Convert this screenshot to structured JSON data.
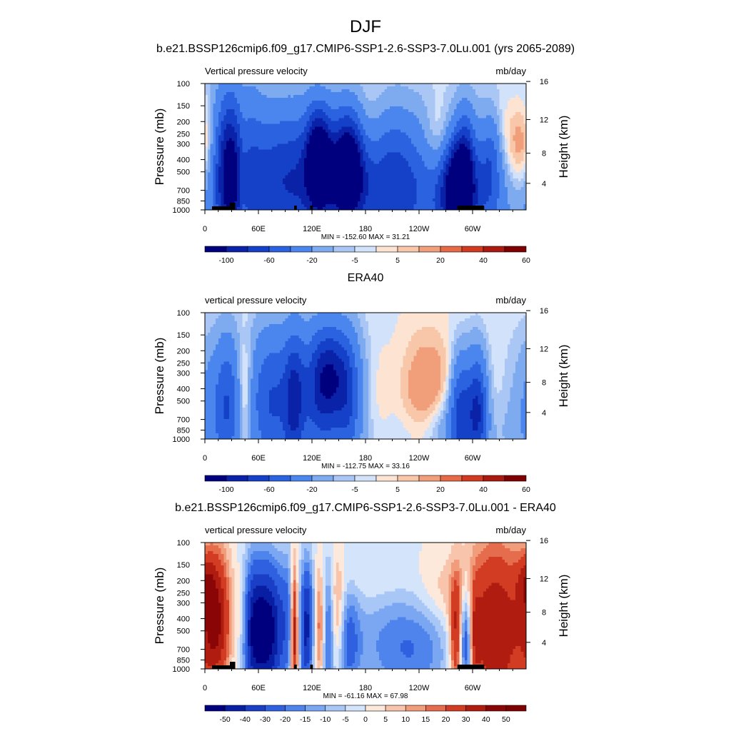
{
  "page_title": "DJF",
  "palette_bluered": [
    "#00007f",
    "#0a22a8",
    "#1540c8",
    "#2a62e0",
    "#4a86ee",
    "#7eaaf0",
    "#a9c6f4",
    "#d2e2fa",
    "#fde4d2",
    "#f8c6a8",
    "#f19e7a",
    "#e66a45",
    "#d23a20",
    "#ab1a10",
    "#7f0000"
  ],
  "palette_diff": [
    "#00007f",
    "#081fa3",
    "#1a3fc6",
    "#2f60df",
    "#4f84ec",
    "#7aa6f2",
    "#a8c6f6",
    "#d4e4fb",
    "#fde8dc",
    "#f8c4ab",
    "#f19c7b",
    "#e56c4c",
    "#d23c22",
    "#b01c10",
    "#8a0606",
    "#7f0000"
  ],
  "panels": [
    {
      "title": "b.e21.BSSP126cmip6.f09_g17.CMIP6-SSP1-2.6-SSP3-7.0Lu.001 (yrs 2065-2089)",
      "left_label": "Vertical pressure velocity",
      "right_label": "mb/day",
      "ylabel": "Pressure (mb)",
      "y2label": "Height (km)",
      "stats": "MIN = -152.60  MAX =  31.21",
      "colorbar_labels": [
        "-100",
        "-60",
        "-20",
        "-5",
        "5",
        "20",
        "40",
        "60"
      ],
      "colorbar_label_slots": [
        1,
        3,
        5,
        7,
        9,
        11,
        13,
        15
      ],
      "palette": "bluered",
      "show_topography": true
    },
    {
      "title": "ERA40",
      "left_label": "vertical pressure velocity",
      "right_label": "mb/day",
      "ylabel": "Pressure (mb)",
      "y2label": "Height (km)",
      "stats": "MIN = -112.75  MAX =  33.16",
      "colorbar_labels": [
        "-100",
        "-60",
        "-20",
        "-5",
        "5",
        "20",
        "40",
        "60"
      ],
      "colorbar_label_slots": [
        1,
        3,
        5,
        7,
        9,
        11,
        13,
        15
      ],
      "palette": "bluered",
      "show_topography": false
    },
    {
      "title": "b.e21.BSSP126cmip6.f09_g17.CMIP6-SSP1-2.6-SSP3-7.0Lu.001 - ERA40",
      "left_label": "vertical pressure velocity",
      "right_label": "mb/day",
      "ylabel": "Pressure (mb)",
      "y2label": "Height (km)",
      "stats": "MIN = -61.16  MAX =  67.98",
      "colorbar_labels": [
        "-50",
        "-40",
        "-30",
        "-20",
        "-15",
        "-10",
        "-5",
        "0",
        "5",
        "10",
        "15",
        "20",
        "30",
        "40",
        "50"
      ],
      "colorbar_label_slots": [
        1,
        2,
        3,
        4,
        5,
        6,
        7,
        8,
        9,
        10,
        11,
        12,
        13,
        14,
        15
      ],
      "palette": "diff",
      "show_topography": true
    }
  ],
  "chart_data": [
    {
      "type": "heatmap",
      "title": "b.e21.BSSP126cmip6.f09_g17.CMIP6-SSP1-2.6-SSP3-7.0Lu.001 (yrs 2065-2089)",
      "ylabel": "Pressure (mb)",
      "y2label": "Height (km)",
      "x_ticks": [
        "0",
        "60E",
        "120E",
        "180",
        "120W",
        "60W"
      ],
      "x_tick_lon": [
        0,
        60,
        120,
        180,
        240,
        300
      ],
      "xlim": [
        0,
        360
      ],
      "y_ticks": [
        100,
        150,
        200,
        250,
        300,
        400,
        500,
        700,
        850,
        1000
      ],
      "ylim": [
        1000,
        100
      ],
      "y_scale": "log",
      "y2_ticks": [
        4,
        8,
        12,
        16
      ],
      "levels": [
        -100,
        -80,
        -60,
        -40,
        -20,
        -10,
        -5,
        0,
        5,
        10,
        20,
        30,
        40,
        50,
        60
      ],
      "min": -152.6,
      "max": 31.21,
      "blobs": [
        [
          300,
          600,
          120,
          360,
          -22
        ],
        [
          18,
          500,
          14,
          360,
          -22
        ],
        [
          28,
          520,
          10,
          340,
          -80
        ],
        [
          42,
          600,
          5,
          340,
          20
        ],
        [
          50,
          620,
          12,
          500,
          -22
        ],
        [
          95,
          600,
          35,
          320,
          -70
        ],
        [
          128,
          400,
          10,
          220,
          -110
        ],
        [
          160,
          450,
          12,
          240,
          -110
        ],
        [
          170,
          700,
          30,
          200,
          -40
        ],
        [
          210,
          320,
          15,
          240,
          -20
        ],
        [
          225,
          800,
          25,
          250,
          -40
        ],
        [
          240,
          200,
          20,
          200,
          -5
        ],
        [
          262,
          300,
          12,
          180,
          22
        ],
        [
          282,
          600,
          10,
          200,
          -60
        ],
        [
          292,
          500,
          8,
          250,
          -60
        ],
        [
          275,
          800,
          15,
          220,
          -40
        ],
        [
          300,
          800,
          20,
          250,
          -40
        ],
        [
          300,
          450,
          12,
          180,
          8
        ],
        [
          320,
          400,
          8,
          200,
          -30
        ],
        [
          350,
          350,
          15,
          200,
          25
        ],
        [
          0,
          350,
          8,
          200,
          10
        ],
        [
          205,
          150,
          25,
          80,
          3
        ],
        [
          335,
          220,
          25,
          150,
          5
        ]
      ]
    },
    {
      "type": "heatmap",
      "title": "ERA40",
      "ylabel": "Pressure (mb)",
      "y2label": "Height (km)",
      "x_ticks": [
        "0",
        "60E",
        "120E",
        "180",
        "120W",
        "60W"
      ],
      "x_tick_lon": [
        0,
        60,
        120,
        180,
        240,
        300
      ],
      "xlim": [
        0,
        360
      ],
      "y_ticks": [
        100,
        150,
        200,
        250,
        300,
        400,
        500,
        700,
        850,
        1000
      ],
      "ylim": [
        1000,
        100
      ],
      "y_scale": "log",
      "y2_ticks": [
        4,
        8,
        12,
        16
      ],
      "levels": [
        -100,
        -80,
        -60,
        -40,
        -20,
        -10,
        -5,
        0,
        5,
        10,
        20,
        30,
        40,
        50,
        60
      ],
      "min": -112.75,
      "max": 33.16,
      "blobs": [
        [
          90,
          500,
          80,
          360,
          -22
        ],
        [
          15,
          600,
          15,
          300,
          -20
        ],
        [
          25,
          550,
          8,
          300,
          -30
        ],
        [
          45,
          450,
          6,
          250,
          25
        ],
        [
          75,
          500,
          15,
          300,
          -40
        ],
        [
          100,
          500,
          8,
          300,
          -60
        ],
        [
          130,
          500,
          15,
          300,
          -40
        ],
        [
          140,
          300,
          15,
          200,
          -60
        ],
        [
          160,
          500,
          10,
          300,
          -40
        ],
        [
          195,
          450,
          10,
          250,
          8
        ],
        [
          220,
          500,
          20,
          300,
          5
        ],
        [
          250,
          400,
          20,
          250,
          20
        ],
        [
          286,
          600,
          8,
          250,
          -60
        ],
        [
          305,
          600,
          8,
          250,
          -80
        ],
        [
          320,
          450,
          15,
          250,
          5
        ],
        [
          230,
          900,
          20,
          120,
          -5
        ],
        [
          270,
          850,
          15,
          150,
          -20
        ],
        [
          330,
          900,
          25,
          150,
          -5
        ]
      ]
    },
    {
      "type": "heatmap",
      "title": "b.e21.BSSP126cmip6.f09_g17.CMIP6-SSP1-2.6-SSP3-7.0Lu.001 - ERA40",
      "ylabel": "Pressure (mb)",
      "y2label": "Height (km)",
      "x_ticks": [
        "0",
        "60E",
        "120E",
        "180",
        "120W",
        "60W"
      ],
      "x_tick_lon": [
        0,
        60,
        120,
        180,
        240,
        300
      ],
      "xlim": [
        0,
        360
      ],
      "y_ticks": [
        100,
        150,
        200,
        250,
        300,
        400,
        500,
        700,
        850,
        1000
      ],
      "ylim": [
        1000,
        100
      ],
      "y_scale": "log",
      "y2_ticks": [
        4,
        8,
        12,
        16
      ],
      "levels": [
        -50,
        -40,
        -30,
        -20,
        -15,
        -10,
        -5,
        0,
        5,
        10,
        15,
        20,
        30,
        40,
        50
      ],
      "min": -61.16,
      "max": 67.98,
      "blobs": [
        [
          12,
          400,
          12,
          300,
          40
        ],
        [
          42,
          450,
          6,
          250,
          20
        ],
        [
          55,
          500,
          12,
          300,
          -55
        ],
        [
          75,
          500,
          10,
          300,
          -40
        ],
        [
          95,
          400,
          8,
          300,
          -20
        ],
        [
          100,
          500,
          3,
          300,
          50
        ],
        [
          113,
          500,
          4,
          300,
          -35
        ],
        [
          120,
          400,
          5,
          250,
          -20
        ],
        [
          128,
          450,
          5,
          250,
          25
        ],
        [
          138,
          500,
          5,
          300,
          -25
        ],
        [
          148,
          400,
          6,
          250,
          20
        ],
        [
          160,
          600,
          10,
          250,
          -20
        ],
        [
          200,
          650,
          30,
          250,
          -12
        ],
        [
          245,
          700,
          30,
          250,
          -15
        ],
        [
          265,
          250,
          20,
          150,
          8
        ],
        [
          282,
          550,
          5,
          250,
          35
        ],
        [
          292,
          600,
          6,
          250,
          -40
        ],
        [
          302,
          550,
          4,
          200,
          20
        ],
        [
          325,
          500,
          25,
          400,
          40
        ],
        [
          190,
          200,
          25,
          80,
          3
        ],
        [
          0,
          200,
          8,
          100,
          15
        ]
      ]
    }
  ]
}
